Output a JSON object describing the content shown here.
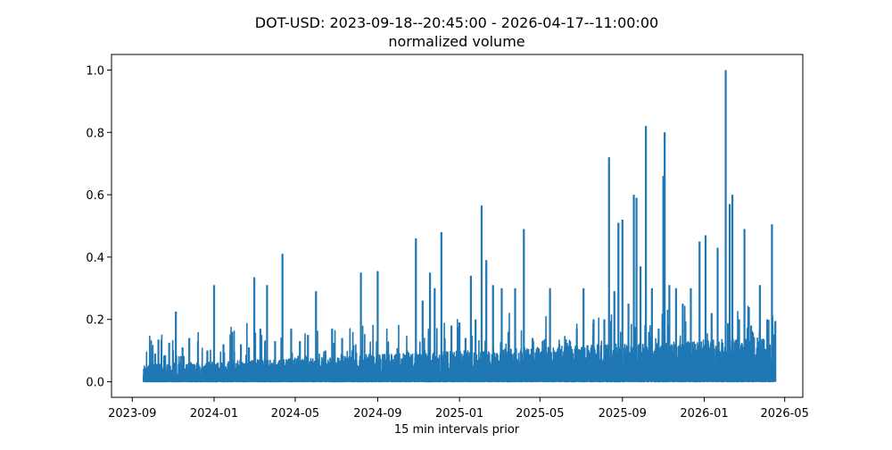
{
  "chart_data": {
    "type": "line",
    "title": "DOT-USD: 2023-09-18--20:45:00 - 2026-04-17--11:00:00",
    "subtitle": "normalized volume",
    "xlabel": "15 min intervals prior",
    "ylabel": "",
    "xlim": [
      "2023-08-01",
      "2026-05-28"
    ],
    "ylim": [
      -0.05,
      1.05
    ],
    "x_ticks": [
      "2023-09",
      "2024-01",
      "2024-05",
      "2024-09",
      "2025-01",
      "2025-05",
      "2025-09",
      "2026-01",
      "2026-05"
    ],
    "y_ticks": [
      0.0,
      0.2,
      0.4,
      0.6,
      0.8,
      1.0
    ],
    "y_tick_labels": [
      "0.0",
      "0.2",
      "0.4",
      "0.6",
      "0.8",
      "1.0"
    ],
    "grid": false,
    "legend": "none",
    "series": [
      {
        "color": "#1f77b4",
        "points": [
          [
            "2023-09-18",
            0.02
          ],
          [
            "2023-09-26",
            0.03
          ],
          [
            "2023-10-05",
            0.09
          ],
          [
            "2023-10-10",
            0.135
          ],
          [
            "2023-10-20",
            0.085
          ],
          [
            "2023-10-26",
            0.125
          ],
          [
            "2023-11-05",
            0.225
          ],
          [
            "2023-11-15",
            0.11
          ],
          [
            "2023-11-25",
            0.14
          ],
          [
            "2023-12-08",
            0.13
          ],
          [
            "2023-12-22",
            0.1
          ],
          [
            "2024-01-01",
            0.31
          ],
          [
            "2024-01-15",
            0.12
          ],
          [
            "2024-01-28",
            0.16
          ],
          [
            "2024-02-10",
            0.12
          ],
          [
            "2024-02-22",
            0.11
          ],
          [
            "2024-03-01",
            0.335
          ],
          [
            "2024-03-10",
            0.17
          ],
          [
            "2024-03-20",
            0.31
          ],
          [
            "2024-04-01",
            0.13
          ],
          [
            "2024-04-12",
            0.41
          ],
          [
            "2024-04-25",
            0.17
          ],
          [
            "2024-05-08",
            0.13
          ],
          [
            "2024-05-20",
            0.15
          ],
          [
            "2024-06-01",
            0.29
          ],
          [
            "2024-06-15",
            0.1
          ],
          [
            "2024-06-25",
            0.17
          ],
          [
            "2024-07-10",
            0.14
          ],
          [
            "2024-07-25",
            0.1
          ],
          [
            "2024-08-07",
            0.35
          ],
          [
            "2024-08-20",
            0.09
          ],
          [
            "2024-09-01",
            0.355
          ],
          [
            "2024-09-15",
            0.1
          ],
          [
            "2024-10-01",
            0.08
          ],
          [
            "2024-10-15",
            0.1
          ],
          [
            "2024-10-28",
            0.46
          ],
          [
            "2024-11-07",
            0.26
          ],
          [
            "2024-11-18",
            0.35
          ],
          [
            "2024-11-25",
            0.3
          ],
          [
            "2024-12-05",
            0.48
          ],
          [
            "2024-12-20",
            0.18
          ],
          [
            "2025-01-01",
            0.19
          ],
          [
            "2025-01-10",
            0.14
          ],
          [
            "2025-01-18",
            0.34
          ],
          [
            "2025-01-25",
            0.2
          ],
          [
            "2025-02-03",
            0.565
          ],
          [
            "2025-02-10",
            0.39
          ],
          [
            "2025-02-20",
            0.31
          ],
          [
            "2025-03-05",
            0.3
          ],
          [
            "2025-03-15",
            0.16
          ],
          [
            "2025-03-25",
            0.3
          ],
          [
            "2025-04-07",
            0.49
          ],
          [
            "2025-04-20",
            0.14
          ],
          [
            "2025-05-05",
            0.13
          ],
          [
            "2025-05-16",
            0.3
          ],
          [
            "2025-05-30",
            0.12
          ],
          [
            "2025-06-15",
            0.13
          ],
          [
            "2025-06-25",
            0.17
          ],
          [
            "2025-07-05",
            0.3
          ],
          [
            "2025-07-20",
            0.2
          ],
          [
            "2025-08-05",
            0.2
          ],
          [
            "2025-08-12",
            0.72
          ],
          [
            "2025-08-20",
            0.29
          ],
          [
            "2025-08-26",
            0.51
          ],
          [
            "2025-09-01",
            0.52
          ],
          [
            "2025-09-10",
            0.25
          ],
          [
            "2025-09-18",
            0.6
          ],
          [
            "2025-09-22",
            0.59
          ],
          [
            "2025-09-28",
            0.37
          ],
          [
            "2025-10-06",
            0.82
          ],
          [
            "2025-10-15",
            0.3
          ],
          [
            "2025-10-25",
            0.17
          ],
          [
            "2025-11-01",
            0.66
          ],
          [
            "2025-11-03",
            0.8
          ],
          [
            "2025-11-10",
            0.31
          ],
          [
            "2025-11-20",
            0.3
          ],
          [
            "2025-11-30",
            0.25
          ],
          [
            "2025-12-12",
            0.3
          ],
          [
            "2025-12-25",
            0.45
          ],
          [
            "2026-01-03",
            0.47
          ],
          [
            "2026-01-12",
            0.22
          ],
          [
            "2026-01-21",
            0.43
          ],
          [
            "2026-02-02",
            1.0
          ],
          [
            "2026-02-08",
            0.57
          ],
          [
            "2026-02-12",
            0.6
          ],
          [
            "2026-02-22",
            0.2
          ],
          [
            "2026-03-02",
            0.49
          ],
          [
            "2026-03-12",
            0.18
          ],
          [
            "2026-03-25",
            0.31
          ],
          [
            "2026-04-05",
            0.2
          ],
          [
            "2026-04-12",
            0.505
          ],
          [
            "2026-04-17",
            0.195
          ]
        ]
      }
    ]
  }
}
